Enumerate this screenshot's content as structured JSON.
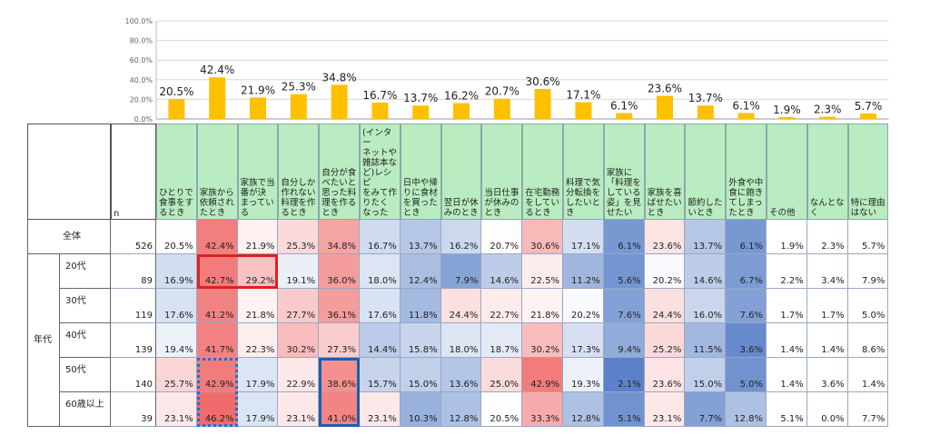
{
  "chart_data": {
    "type": "bar",
    "ylim": [
      0,
      100
    ],
    "yticks": [
      "0.0%",
      "20.0%",
      "40.0%",
      "60.0%",
      "80.0%",
      "100.0%"
    ],
    "bar_color": "#ffc000",
    "values": [
      20.5,
      42.4,
      21.9,
      25.3,
      34.8,
      16.7,
      13.7,
      16.2,
      20.7,
      30.6,
      17.1,
      6.1,
      23.6,
      13.7,
      6.1,
      1.9,
      2.3,
      5.7
    ],
    "value_labels": [
      "20.5%",
      "42.4%",
      "21.9%",
      "25.3%",
      "34.8%",
      "16.7%",
      "13.7%",
      "16.2%",
      "20.7%",
      "30.6%",
      "17.1%",
      "6.1%",
      "23.6%",
      "13.7%",
      "6.1%",
      "1.9%",
      "2.3%",
      "5.7%"
    ]
  },
  "table": {
    "n_header": "n",
    "columns": [
      [
        "ひとりで",
        "食事をす",
        "るとき"
      ],
      [
        "家族から",
        "依頼され",
        "たとき"
      ],
      [
        "家族で当",
        "番が決",
        "まってい",
        "る"
      ],
      [
        "自分しか",
        "作れない",
        "料理を作",
        "るとき"
      ],
      [
        "自分が食",
        "べたいと",
        "思った料",
        "理を作る",
        "とき"
      ],
      [
        "(インター",
        "ネットや",
        "雑誌本な",
        "ど)レシピ",
        "をみて作",
        "りたく",
        "なった"
      ],
      [
        "日中や帰",
        "りに食材",
        "を買った",
        "とき"
      ],
      [
        "翌日が休",
        "みのとき"
      ],
      [
        "当日仕事",
        "が休みの",
        "とき"
      ],
      [
        "在宅勤務",
        "をしてい",
        "るとき"
      ],
      [
        "料理で気",
        "分転換を",
        "したいと",
        "き"
      ],
      [
        "家族に",
        "「料理を",
        "している",
        "姿」を見",
        "せたい"
      ],
      [
        "家族を喜",
        "ばせたい",
        "とき"
      ],
      [
        "節約した",
        "いとき"
      ],
      [
        "外食や中",
        "食に飽き",
        "てしまっ",
        "たとき"
      ],
      [
        "その他"
      ],
      [
        "なんとな",
        "く"
      ],
      [
        "特に理由",
        "はない"
      ]
    ],
    "group_label": "年代",
    "rows": [
      {
        "label": "全体",
        "n": "526",
        "cells": [
          "20.5%",
          "42.4%",
          "21.9%",
          "25.3%",
          "34.8%",
          "16.7%",
          "13.7%",
          "16.2%",
          "20.7%",
          "30.6%",
          "17.1%",
          "6.1%",
          "23.6%",
          "13.7%",
          "6.1%",
          "1.9%",
          "2.3%",
          "5.7%"
        ]
      },
      {
        "label": "20代",
        "n": "89",
        "cells": [
          "16.9%",
          "42.7%",
          "29.2%",
          "19.1%",
          "36.0%",
          "18.0%",
          "12.4%",
          "7.9%",
          "14.6%",
          "22.5%",
          "11.2%",
          "5.6%",
          "20.2%",
          "14.6%",
          "6.7%",
          "2.2%",
          "3.4%",
          "7.9%"
        ]
      },
      {
        "label": "30代",
        "n": "119",
        "cells": [
          "17.6%",
          "41.2%",
          "21.8%",
          "27.7%",
          "36.1%",
          "17.6%",
          "11.8%",
          "24.4%",
          "22.7%",
          "21.8%",
          "20.2%",
          "7.6%",
          "24.4%",
          "16.0%",
          "7.6%",
          "1.7%",
          "1.7%",
          "5.0%"
        ]
      },
      {
        "label": "40代",
        "n": "139",
        "cells": [
          "19.4%",
          "41.7%",
          "22.3%",
          "30.2%",
          "27.3%",
          "14.4%",
          "15.8%",
          "18.0%",
          "18.7%",
          "30.2%",
          "17.3%",
          "9.4%",
          "25.2%",
          "11.5%",
          "3.6%",
          "1.4%",
          "1.4%",
          "8.6%"
        ]
      },
      {
        "label": "50代",
        "n": "140",
        "cells": [
          "25.7%",
          "42.9%",
          "17.9%",
          "22.9%",
          "38.6%",
          "15.7%",
          "15.0%",
          "13.6%",
          "25.0%",
          "42.9%",
          "19.3%",
          "2.1%",
          "23.6%",
          "15.0%",
          "5.0%",
          "1.4%",
          "3.6%",
          "1.4%"
        ]
      },
      {
        "label": "60歳以上",
        "n": "39",
        "cells": [
          "23.1%",
          "46.2%",
          "17.9%",
          "23.1%",
          "41.0%",
          "23.1%",
          "10.3%",
          "12.8%",
          "20.5%",
          "33.3%",
          "12.8%",
          "5.1%",
          "23.1%",
          "7.7%",
          "12.8%",
          "5.1%",
          "0.0%",
          "7.7%"
        ]
      }
    ],
    "shading": {
      "high_color": "#f06c6c",
      "low_color": "#5b82c8",
      "neutral_color": "#ffffff",
      "plain_columns": [
        15,
        16,
        17
      ]
    },
    "highlights": [
      {
        "row": 1,
        "cols": [
          1,
          2
        ],
        "style": "solid",
        "color": "#e02020"
      },
      {
        "row": 4,
        "cols": [
          1
        ],
        "style": "dotted",
        "color": "#1a6fd0",
        "to_row": 5
      },
      {
        "row": 4,
        "cols": [
          4
        ],
        "style": "solid",
        "color": "#1a5fb0",
        "to_row": 5
      }
    ]
  }
}
